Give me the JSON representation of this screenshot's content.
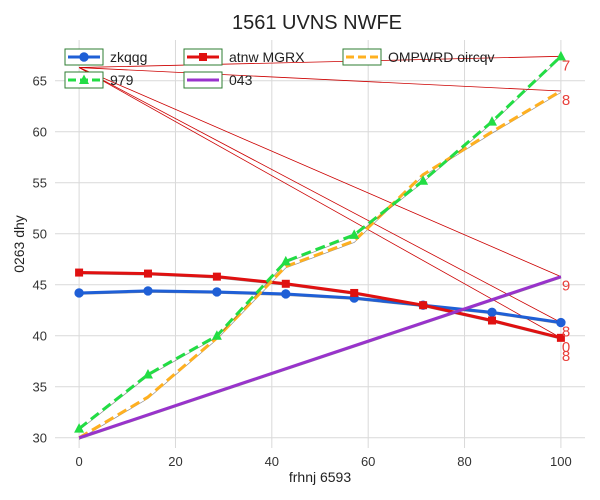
{
  "chart_data": {
    "type": "line",
    "title": "1561 UVNS NWFE",
    "xlabel": "frhnj 6593",
    "ylabel": "0263 dhy",
    "xlim": [
      -5,
      105
    ],
    "ylim": [
      29,
      69
    ],
    "xticks": [
      0,
      20,
      40,
      60,
      80,
      100
    ],
    "yticks": [
      30,
      35,
      40,
      45,
      50,
      55,
      60,
      65
    ],
    "grid": true,
    "series": [
      {
        "name": "zkqqg",
        "color": "#1f5fd6",
        "marker": "circle",
        "dash": "solid",
        "x": [
          0,
          14.3,
          28.6,
          42.9,
          57.1,
          71.4,
          85.7,
          100
        ],
        "y": [
          44.2,
          44.4,
          44.3,
          44.1,
          43.7,
          43.0,
          42.3,
          41.3
        ]
      },
      {
        "name": "atnw MGRX",
        "color": "#e01010",
        "marker": "square",
        "dash": "solid",
        "x": [
          0,
          14.3,
          28.6,
          42.9,
          57.1,
          71.4,
          85.7,
          100
        ],
        "y": [
          46.2,
          46.1,
          45.8,
          45.1,
          44.2,
          43.0,
          41.5,
          39.8
        ]
      },
      {
        "name": "OMPWRD oircqv",
        "color": "#ffb020",
        "marker": "none",
        "dash": "dashed",
        "x": [
          0,
          14.3,
          28.6,
          42.9,
          57.1,
          71.4,
          85.7,
          100
        ],
        "y": [
          30.0,
          34.0,
          39.8,
          46.8,
          49.3,
          55.8,
          60.0,
          64.0
        ]
      },
      {
        "name": "979",
        "color": "#22dd44",
        "marker": "triangle",
        "dash": "dashed",
        "x": [
          0,
          14.3,
          28.6,
          42.9,
          57.1,
          71.4,
          85.7,
          100
        ],
        "y": [
          30.9,
          36.2,
          40.0,
          47.3,
          49.9,
          55.2,
          61.0,
          67.4
        ]
      },
      {
        "name": "043",
        "color": "#9933cc",
        "marker": "none",
        "dash": "solid",
        "x": [
          0,
          100
        ],
        "y": [
          30.0,
          45.8
        ]
      }
    ],
    "reference_lines": {
      "color": "#cc0000",
      "segments": [
        [
          [
            0,
            66.3
          ],
          [
            100,
            67.4
          ]
        ],
        [
          [
            0,
            66.3
          ],
          [
            100,
            41.3
          ]
        ],
        [
          [
            0,
            66.3
          ],
          [
            100,
            39.8
          ]
        ],
        [
          [
            0,
            66.3
          ],
          [
            100,
            45.8
          ]
        ],
        [
          [
            0,
            66.3
          ],
          [
            100,
            64.0
          ]
        ]
      ]
    },
    "end_labels": [
      {
        "text": "7",
        "x": 100,
        "y": 67.4
      },
      {
        "text": "8",
        "x": 100,
        "y": 64.0
      },
      {
        "text": "9",
        "x": 100,
        "y": 45.8
      },
      {
        "text": "8",
        "x": 100,
        "y": 41.3
      },
      {
        "text": "0",
        "x": 100,
        "y": 39.8
      },
      {
        "text": "8",
        "x": 100,
        "y": 38.9
      }
    ],
    "legend_position": "top"
  }
}
